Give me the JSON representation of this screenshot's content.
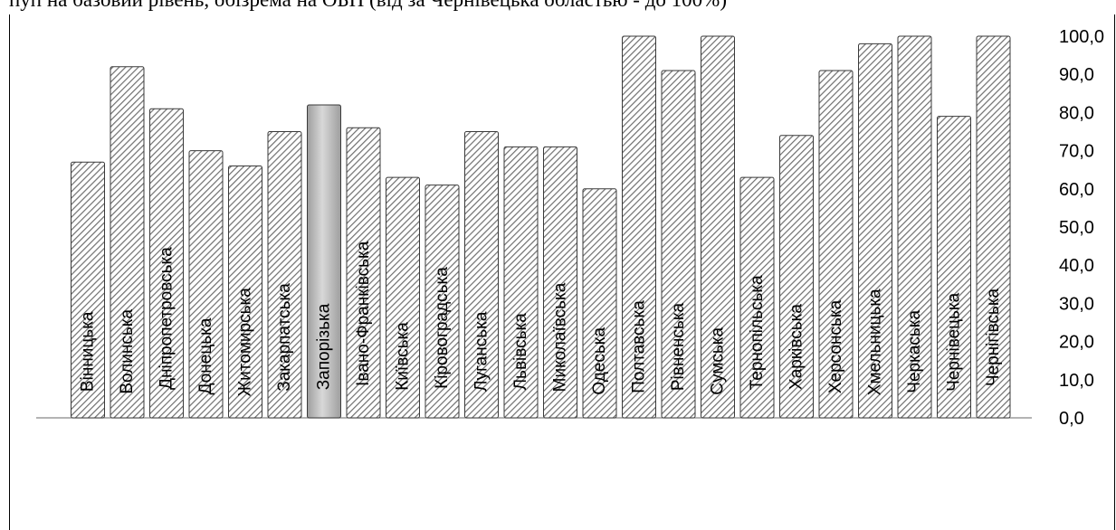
{
  "caption": "пуп на базовий рівень, обізрема на ОБП (від   за Чернівецька областью - до 100%)",
  "colors": {
    "bar_stroke": "#3a3a3a",
    "hatch_line": "#6f6f6f",
    "highlight_fill": "#9e9e9e",
    "highlight_light": "#d8d8d8"
  },
  "chart_data": {
    "type": "bar",
    "orientation": "vertical",
    "y_axis_position": "right",
    "ylim": [
      0,
      100
    ],
    "y_ticks": [
      "0,0",
      "10,0",
      "20,0",
      "30,0",
      "40,0",
      "50,0",
      "60,0",
      "70,0",
      "80,0",
      "90,0",
      "100,0"
    ],
    "grid": false,
    "legend": "none",
    "highlighted_category": "Запорізька",
    "categories": [
      "Вінницька",
      "Волинська",
      "Дніпропетровська",
      "Донецька",
      "Житомирська",
      "Закарпатська",
      "Запорізька",
      "Івано-Франківська",
      "Київська",
      "Кіровоградська",
      "Луганська",
      "Львівська",
      "Миколаївська",
      "Одеська",
      "Полтавська",
      "Рівненська",
      "Сумська",
      "Тернопільська",
      "Харківська",
      "Херсонська",
      "Хмельницька",
      "Черкаська",
      "Чернівецька",
      "Чернігівська"
    ],
    "values": [
      67,
      92,
      81,
      70,
      66,
      75,
      82,
      76,
      63,
      61,
      75,
      71,
      71,
      60,
      100,
      91,
      100,
      63,
      74,
      91,
      98,
      100,
      79,
      100
    ]
  }
}
